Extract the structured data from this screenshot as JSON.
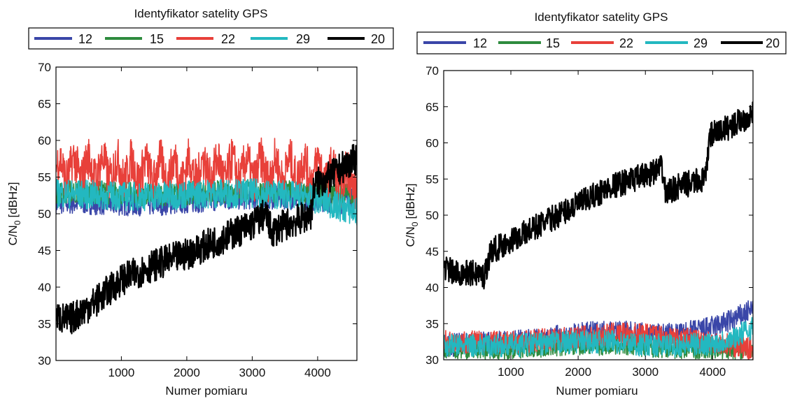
{
  "colors": {
    "12": "#3a46a8",
    "15": "#2e8b3e",
    "22": "#e8403a",
    "29": "#23b8c0",
    "20": "#000000"
  },
  "chart_data": [
    {
      "type": "line",
      "title": "Identyfikator satelity GPS",
      "xlabel": "Numer pomiaru",
      "ylabel_main": "C/N",
      "ylabel_sub": "0",
      "ylabel_unit": "[dBHz]",
      "xlim": [
        1,
        4600
      ],
      "ylim": [
        30,
        70
      ],
      "xticks": [
        1000,
        2000,
        3000,
        4000
      ],
      "yticks": [
        30,
        35,
        40,
        45,
        50,
        55,
        60,
        65,
        70
      ],
      "legend_position": "top",
      "series": [
        {
          "name": "12",
          "x": [
            0,
            500,
            1000,
            1500,
            2000,
            2500,
            3000,
            3500,
            4000,
            4300,
            4600
          ],
          "values": [
            51.5,
            51.5,
            51.3,
            51.3,
            51.6,
            52.0,
            52.2,
            52.2,
            52.0,
            51.5,
            52.0
          ]
        },
        {
          "name": "15",
          "x": [
            0,
            500,
            1000,
            1500,
            2000,
            2500,
            3000,
            3500,
            4000,
            4300,
            4600
          ],
          "values": [
            53.0,
            53.0,
            52.8,
            52.6,
            52.8,
            53.0,
            53.2,
            53.0,
            52.8,
            52.5,
            53.0
          ]
        },
        {
          "name": "22",
          "x": [
            0,
            500,
            1000,
            1500,
            2000,
            2500,
            3000,
            3500,
            4000,
            4300,
            4600
          ],
          "values": [
            56.0,
            56.2,
            56.0,
            55.8,
            56.0,
            56.0,
            56.0,
            56.0,
            56.0,
            55.0,
            54.5
          ]
        },
        {
          "name": "29",
          "x": [
            0,
            500,
            1000,
            1500,
            2000,
            2500,
            3000,
            3500,
            4000,
            4300,
            4600
          ],
          "values": [
            52.8,
            52.6,
            52.4,
            52.4,
            52.6,
            52.8,
            52.8,
            52.6,
            52.0,
            51.0,
            50.2
          ]
        },
        {
          "name": "20",
          "x": [
            0,
            200,
            600,
            1000,
            1500,
            2000,
            2500,
            3000,
            3200,
            3300,
            3500,
            3800,
            3900,
            3950,
            4200,
            4400,
            4600
          ],
          "values": [
            36.0,
            35.5,
            38.0,
            41.0,
            43.0,
            44.5,
            46.5,
            48.5,
            50.0,
            47.5,
            48.5,
            49.5,
            50.0,
            54.0,
            55.0,
            56.5,
            57.5
          ]
        }
      ]
    },
    {
      "type": "line",
      "title": "Identyfikator satelity GPS",
      "xlabel": "Numer pomiaru",
      "ylabel_main": "C/N",
      "ylabel_sub": "0",
      "ylabel_unit": "[dBHz]",
      "xlim": [
        1,
        4600
      ],
      "ylim": [
        30,
        70
      ],
      "xticks": [
        1000,
        2000,
        3000,
        4000
      ],
      "yticks": [
        30,
        35,
        40,
        45,
        50,
        55,
        60,
        65,
        70
      ],
      "legend_position": "top",
      "series": [
        {
          "name": "12",
          "x": [
            0,
            1000,
            2000,
            2500,
            3000,
            3500,
            4000,
            4300,
            4600
          ],
          "values": [
            32.0,
            32.5,
            33.5,
            34.0,
            33.5,
            33.5,
            34.5,
            35.5,
            37.0
          ]
        },
        {
          "name": "15",
          "x": [
            0,
            1000,
            2000,
            2500,
            3000,
            3500,
            4000,
            4300,
            4600
          ],
          "values": [
            31.5,
            31.5,
            32.0,
            32.0,
            31.8,
            31.5,
            31.5,
            31.5,
            31.5
          ]
        },
        {
          "name": "22",
          "x": [
            0,
            1000,
            2000,
            2500,
            3000,
            3500,
            4000,
            4300,
            4600
          ],
          "values": [
            32.5,
            32.5,
            33.0,
            33.5,
            33.5,
            33.0,
            32.5,
            32.0,
            31.5
          ]
        },
        {
          "name": "29",
          "x": [
            0,
            1000,
            2000,
            2500,
            3000,
            3500,
            4000,
            4300,
            4600
          ],
          "values": [
            32.0,
            32.0,
            32.5,
            32.5,
            32.0,
            32.0,
            32.2,
            33.0,
            34.5
          ]
        },
        {
          "name": "20",
          "x": [
            0,
            150,
            500,
            600,
            700,
            1000,
            1500,
            2000,
            2500,
            3000,
            3250,
            3300,
            3500,
            3900,
            3950,
            4200,
            4600
          ],
          "values": [
            43.0,
            42.0,
            42.0,
            41.5,
            45.0,
            46.5,
            49.0,
            51.5,
            54.0,
            55.5,
            56.5,
            53.0,
            54.0,
            55.0,
            61.0,
            62.0,
            64.0
          ]
        }
      ]
    }
  ]
}
